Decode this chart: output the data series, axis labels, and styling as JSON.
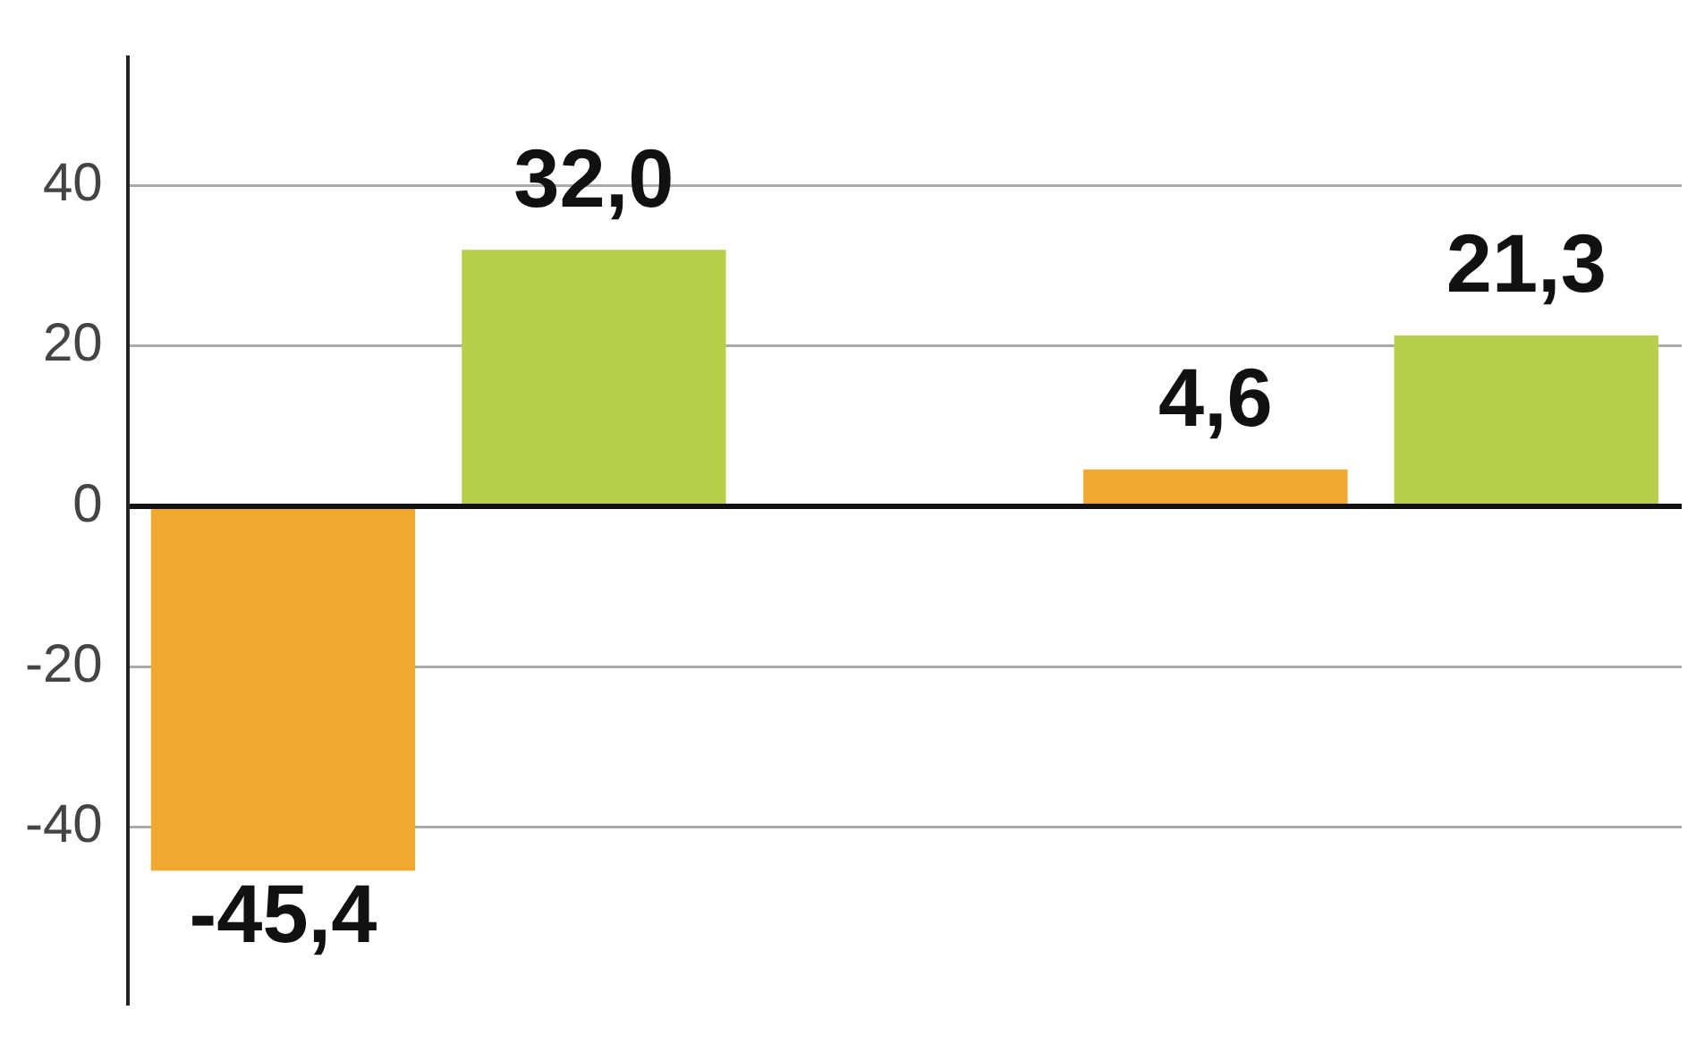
{
  "chart_data": {
    "type": "bar",
    "categories": [
      null,
      null,
      null,
      null,
      null
    ],
    "values": [
      -45.4,
      32.0,
      null,
      4.6,
      21.3
    ],
    "colors": [
      "#f0a830",
      "#b8cf4e",
      null,
      "#f0a830",
      "#b8cf4e"
    ],
    "value_labels": [
      "-45,4",
      "32,0",
      null,
      "4,6",
      "21,3"
    ],
    "ylim": [
      -62,
      56
    ],
    "yticks": [
      -40,
      -20,
      0,
      20,
      40
    ],
    "grid": "y",
    "tick_labels": "y"
  }
}
